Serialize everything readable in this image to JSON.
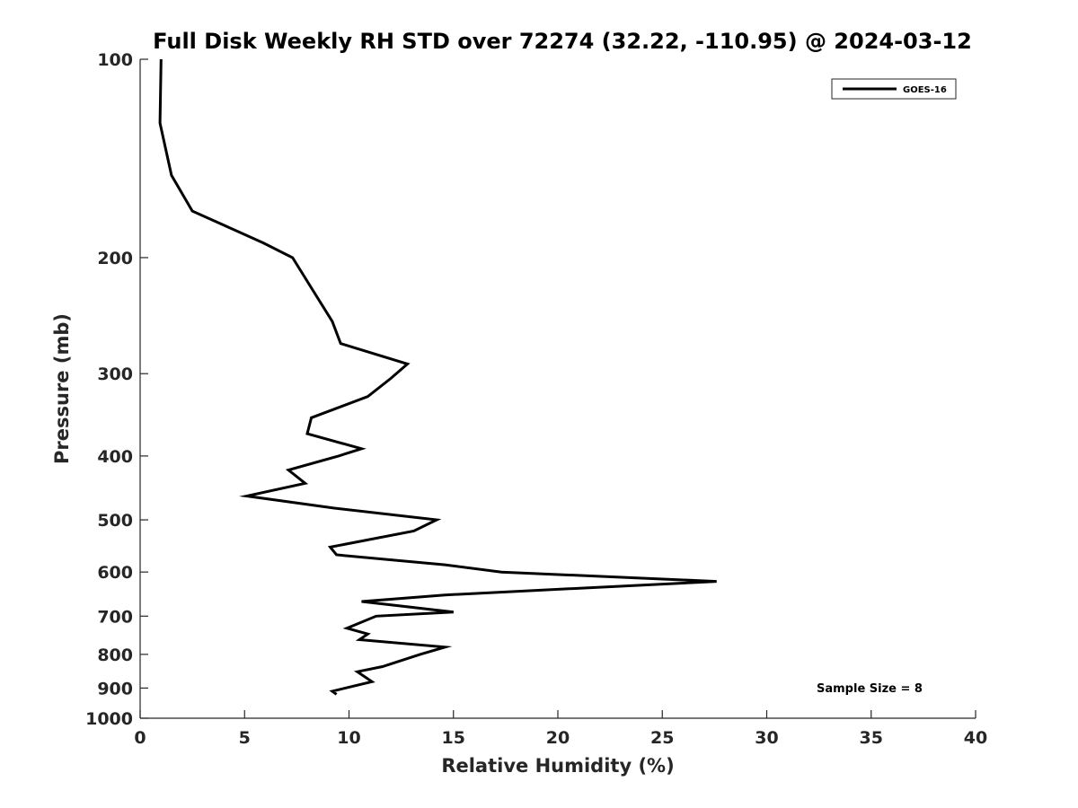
{
  "chart_data": {
    "type": "line",
    "title": "Full Disk Weekly RH STD over 72274 (32.22, -110.95) @ 2024-03-12",
    "xlabel": "Relative Humidity (%)",
    "ylabel": "Pressure (mb)",
    "xlim": [
      0,
      40
    ],
    "ylim": [
      100,
      1000
    ],
    "yscale": "log",
    "y_reversed": true,
    "grid": false,
    "x_ticks": [
      0,
      5,
      10,
      15,
      20,
      25,
      30,
      35,
      40
    ],
    "x_tick_labels": [
      "0",
      "5",
      "10",
      "15",
      "20",
      "25",
      "30",
      "35",
      "40"
    ],
    "y_ticks": [
      100,
      200,
      300,
      400,
      500,
      600,
      700,
      800,
      900,
      1000
    ],
    "y_tick_labels": [
      "100",
      "200",
      "300",
      "400",
      "500",
      "600",
      "700",
      "800",
      "900",
      "1000"
    ],
    "legend": {
      "position": "top-right",
      "entries": [
        "GOES-16"
      ]
    },
    "annotation": "Sample Size = 8",
    "series": [
      {
        "name": "GOES-16",
        "color": "#000000",
        "x": [
          1.0,
          0.95,
          1.5,
          2.5,
          5.9,
          7.3,
          8.3,
          9.2,
          9.6,
          12.8,
          12.0,
          10.9,
          8.2,
          8.0,
          10.6,
          9.5,
          7.1,
          7.9,
          5.1,
          9.3,
          14.2,
          13.1,
          9.1,
          9.4,
          14.6,
          17.3,
          27.6,
          14.6,
          10.6,
          15.0,
          11.3,
          9.9,
          10.9,
          10.5,
          14.6,
          13.4,
          11.6,
          10.4,
          11.1,
          9.2,
          9.4
        ],
        "y": [
          100,
          125,
          150,
          170,
          190,
          200,
          225,
          250,
          270,
          290,
          305,
          325,
          350,
          370,
          390,
          400,
          420,
          440,
          460,
          480,
          500,
          520,
          550,
          565,
          585,
          600,
          620,
          650,
          665,
          690,
          700,
          730,
          745,
          760,
          780,
          800,
          835,
          850,
          880,
          910,
          920
        ]
      }
    ]
  }
}
